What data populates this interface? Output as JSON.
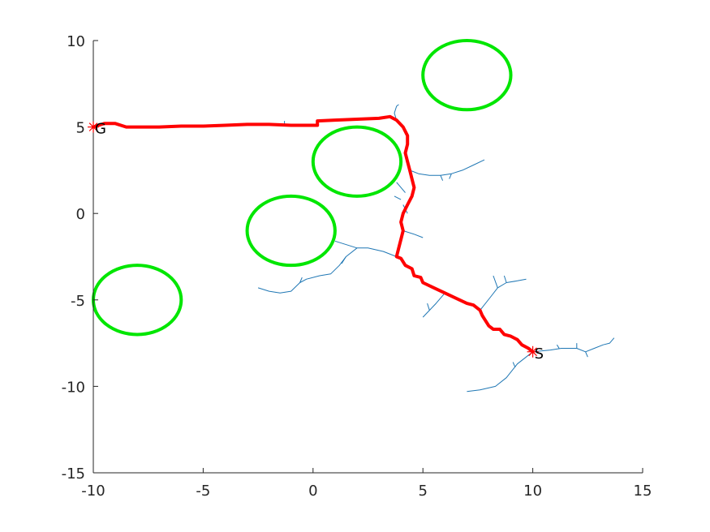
{
  "chart_data": {
    "type": "scatter",
    "title": "",
    "xlabel": "",
    "ylabel": "",
    "xlim": [
      -10,
      15
    ],
    "ylim": [
      -15,
      10
    ],
    "xticks": [
      -10,
      -5,
      0,
      5,
      10,
      15
    ],
    "yticks": [
      -15,
      -10,
      -5,
      0,
      5,
      10
    ],
    "grid": false,
    "colors": {
      "obstacle": "#00e600",
      "path": "#ff0000",
      "tree": "#1f77b4",
      "axis": "#262626"
    },
    "obstacles": [
      {
        "cx": 7,
        "cy": 8,
        "r": 2
      },
      {
        "cx": 2,
        "cy": 3,
        "r": 2
      },
      {
        "cx": -1,
        "cy": -1,
        "r": 2
      },
      {
        "cx": -8,
        "cy": -5,
        "r": 2
      }
    ],
    "start": {
      "x": 10,
      "y": -8,
      "label": "S"
    },
    "goal": {
      "x": -10,
      "y": 5,
      "label": "G"
    },
    "path": [
      [
        10,
        -8
      ],
      [
        9.8,
        -7.8
      ],
      [
        9.5,
        -7.6
      ],
      [
        9.3,
        -7.3
      ],
      [
        9.0,
        -7.1
      ],
      [
        8.7,
        -7.0
      ],
      [
        8.5,
        -6.7
      ],
      [
        8.2,
        -6.7
      ],
      [
        8.0,
        -6.5
      ],
      [
        7.8,
        -6.1
      ],
      [
        7.7,
        -5.9
      ],
      [
        7.6,
        -5.6
      ],
      [
        7.3,
        -5.3
      ],
      [
        7.0,
        -5.2
      ],
      [
        6.5,
        -4.9
      ],
      [
        6.0,
        -4.6
      ],
      [
        5.5,
        -4.3
      ],
      [
        5.0,
        -4.0
      ],
      [
        4.9,
        -3.7
      ],
      [
        4.6,
        -3.6
      ],
      [
        4.5,
        -3.2
      ],
      [
        4.2,
        -3.0
      ],
      [
        4.0,
        -2.6
      ],
      [
        3.8,
        -2.5
      ],
      [
        3.9,
        -2.0
      ],
      [
        4.0,
        -1.5
      ],
      [
        4.1,
        -1.0
      ],
      [
        4.0,
        -0.5
      ],
      [
        4.1,
        0.0
      ],
      [
        4.3,
        0.5
      ],
      [
        4.5,
        1.0
      ],
      [
        4.6,
        1.5
      ],
      [
        4.5,
        2.0
      ],
      [
        4.4,
        2.5
      ],
      [
        4.3,
        3.0
      ],
      [
        4.2,
        3.5
      ],
      [
        4.3,
        4.0
      ],
      [
        4.3,
        4.5
      ],
      [
        4.1,
        5.0
      ],
      [
        3.8,
        5.4
      ],
      [
        3.5,
        5.6
      ],
      [
        3.0,
        5.5
      ],
      [
        2.0,
        5.45
      ],
      [
        1.0,
        5.4
      ],
      [
        0.2,
        5.35
      ],
      [
        0.2,
        5.1
      ],
      [
        -1.0,
        5.1
      ],
      [
        -2.0,
        5.15
      ],
      [
        -3.0,
        5.15
      ],
      [
        -4.0,
        5.1
      ],
      [
        -5.0,
        5.05
      ],
      [
        -6.0,
        5.05
      ],
      [
        -7.0,
        5.0
      ],
      [
        -8.0,
        5.0
      ],
      [
        -8.5,
        5.0
      ],
      [
        -9.0,
        5.2
      ],
      [
        -9.5,
        5.2
      ],
      [
        -10.0,
        5.0
      ]
    ],
    "tree_branches": [
      [
        [
          10,
          -8
        ],
        [
          10.8,
          -7.9
        ],
        [
          11.3,
          -7.8
        ],
        [
          12.0,
          -7.8
        ],
        [
          12.4,
          -8.0
        ],
        [
          12.8,
          -7.8
        ],
        [
          13.2,
          -7.6
        ],
        [
          13.5,
          -7.5
        ],
        [
          13.7,
          -7.2
        ]
      ],
      [
        [
          10,
          -8
        ],
        [
          9.3,
          -8.7
        ],
        [
          8.8,
          -9.5
        ],
        [
          8.3,
          -10.0
        ],
        [
          7.6,
          -10.2
        ],
        [
          7.0,
          -10.3
        ]
      ],
      [
        [
          9.1,
          -8.6
        ],
        [
          9.2,
          -8.9
        ]
      ],
      [
        [
          11.2,
          -7.8
        ],
        [
          11.1,
          -7.6
        ]
      ],
      [
        [
          12.0,
          -7.8
        ],
        [
          12.0,
          -7.5
        ]
      ],
      [
        [
          12.4,
          -8.0
        ],
        [
          12.5,
          -8.3
        ]
      ],
      [
        [
          7.6,
          -5.6
        ],
        [
          8.1,
          -4.8
        ],
        [
          8.4,
          -4.3
        ],
        [
          8.8,
          -4.0
        ],
        [
          9.3,
          -3.9
        ],
        [
          9.7,
          -3.8
        ]
      ],
      [
        [
          8.4,
          -4.3
        ],
        [
          8.2,
          -3.6
        ]
      ],
      [
        [
          8.8,
          -4.0
        ],
        [
          8.7,
          -3.6
        ]
      ],
      [
        [
          6.0,
          -4.6
        ],
        [
          5.6,
          -5.2
        ],
        [
          5.3,
          -5.6
        ],
        [
          5.0,
          -6.0
        ]
      ],
      [
        [
          5.3,
          -5.6
        ],
        [
          5.2,
          -5.2
        ]
      ],
      [
        [
          3.8,
          -2.5
        ],
        [
          3.2,
          -2.2
        ],
        [
          2.5,
          -2.0
        ],
        [
          2.0,
          -2.0
        ],
        [
          1.5,
          -2.5
        ],
        [
          1.2,
          -3.0
        ],
        [
          0.8,
          -3.5
        ],
        [
          0.3,
          -3.6
        ],
        [
          -0.3,
          -3.8
        ],
        [
          -0.6,
          -4.0
        ],
        [
          -1.0,
          -4.5
        ],
        [
          -1.5,
          -4.6
        ],
        [
          -2.0,
          -4.5
        ],
        [
          -2.5,
          -4.3
        ]
      ],
      [
        [
          2.0,
          -2.0
        ],
        [
          1.0,
          -1.6
        ]
      ],
      [
        [
          1.5,
          -2.5
        ],
        [
          1.3,
          -2.9
        ]
      ],
      [
        [
          -0.6,
          -4.0
        ],
        [
          -0.5,
          -3.7
        ]
      ],
      [
        [
          4.1,
          -1.0
        ],
        [
          4.6,
          -1.2
        ],
        [
          5.0,
          -1.4
        ]
      ],
      [
        [
          4.3,
          0.0
        ],
        [
          4.1,
          0.5
        ]
      ],
      [
        [
          4.0,
          0.8
        ],
        [
          3.7,
          1.0
        ]
      ],
      [
        [
          4.4,
          2.5
        ],
        [
          4.8,
          2.3
        ],
        [
          5.3,
          2.2
        ],
        [
          5.8,
          2.2
        ],
        [
          6.3,
          2.3
        ],
        [
          6.8,
          2.5
        ],
        [
          7.3,
          2.8
        ],
        [
          7.8,
          3.1
        ]
      ],
      [
        [
          6.3,
          2.3
        ],
        [
          6.2,
          2.0
        ]
      ],
      [
        [
          5.8,
          2.2
        ],
        [
          5.9,
          1.9
        ]
      ],
      [
        [
          4.2,
          1.2
        ],
        [
          4.0,
          1.5
        ],
        [
          3.8,
          1.8
        ]
      ],
      [
        [
          3.8,
          5.4
        ],
        [
          3.7,
          5.8
        ],
        [
          3.8,
          6.2
        ],
        [
          3.9,
          6.3
        ]
      ],
      [
        [
          -1.3,
          5.1
        ],
        [
          -1.3,
          5.35
        ]
      ]
    ]
  },
  "tick_labels": {
    "x": [
      "-10",
      "-5",
      "0",
      "5",
      "10",
      "15"
    ],
    "y": [
      "-15",
      "-10",
      "-5",
      "0",
      "5",
      "10"
    ]
  }
}
